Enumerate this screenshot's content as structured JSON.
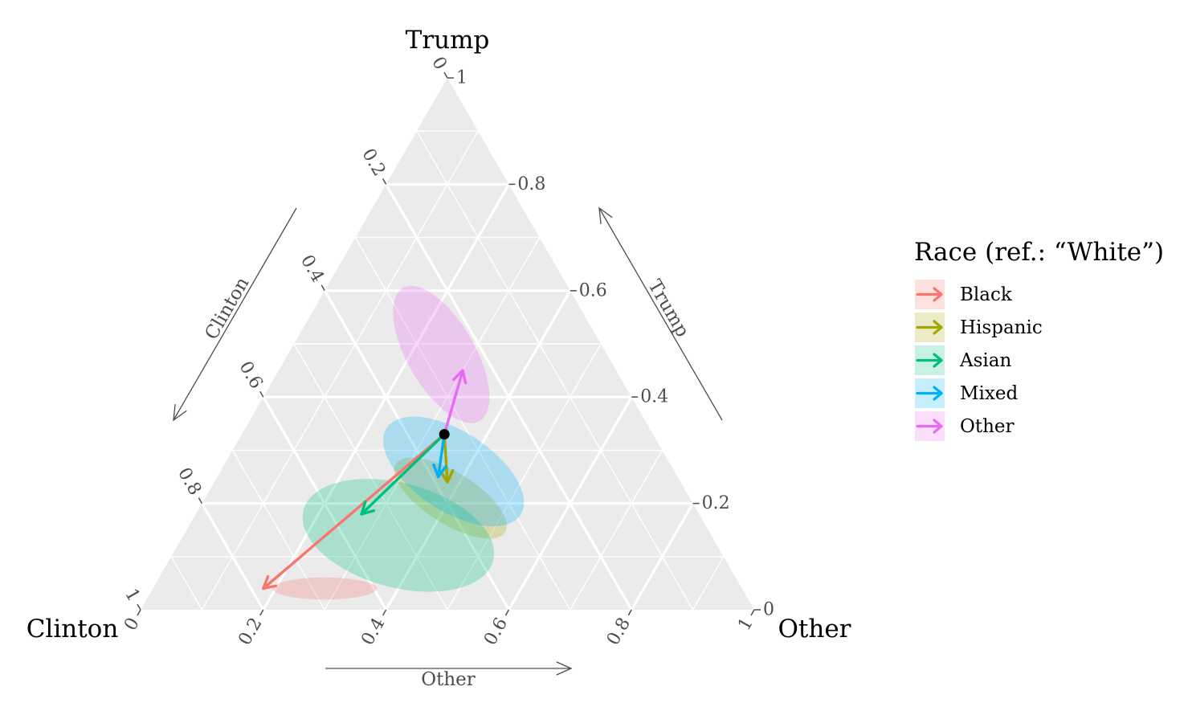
{
  "chart_data": {
    "type": "ternary",
    "vertices": {
      "top": "Trump",
      "left": "Clinton",
      "right": "Other"
    },
    "axis_titles": {
      "left": "Clinton",
      "right": "Trump",
      "bottom": "Other"
    },
    "ticks": [
      0,
      0.2,
      0.4,
      0.6,
      0.8,
      1
    ],
    "tick_labels": [
      "0",
      "0.2",
      "0.4",
      "0.6",
      "0.8",
      "1"
    ],
    "reference_point": {
      "trump": 0.33,
      "other": 0.33,
      "clinton": 0.34
    },
    "legend": {
      "title": "Race (ref.: “White”)",
      "placement": "right"
    },
    "series": [
      {
        "name": "Black",
        "color": "#F8766D",
        "arrow_end": {
          "trump": 0.04,
          "other": 0.18,
          "clinton": 0.78
        },
        "ellipse": {
          "center": {
            "trump": 0.04,
            "other": 0.28
          },
          "a": 0.085,
          "b": 0.018,
          "angle": 0
        }
      },
      {
        "name": "Hispanic",
        "color": "#A3A500",
        "arrow_end": {
          "trump": 0.24,
          "other": 0.38,
          "clinton": 0.38
        },
        "ellipse": {
          "center": {
            "trump": 0.21,
            "other": 0.4
          },
          "a": 0.105,
          "b": 0.042,
          "angle": 32
        }
      },
      {
        "name": "Asian",
        "color": "#00BF7D",
        "arrow_end": {
          "trump": 0.18,
          "other": 0.27,
          "clinton": 0.55
        },
        "ellipse": {
          "center": {
            "trump": 0.14,
            "other": 0.35
          },
          "a": 0.16,
          "b": 0.085,
          "angle": 15
        }
      },
      {
        "name": "Mixed",
        "color": "#00B0F6",
        "arrow_end": {
          "trump": 0.25,
          "other": 0.36,
          "clinton": 0.39
        },
        "ellipse": {
          "center": {
            "trump": 0.26,
            "other": 0.38
          },
          "a": 0.13,
          "b": 0.065,
          "angle": 33
        }
      },
      {
        "name": "Other",
        "color": "#E76BF3",
        "arrow_end": {
          "trump": 0.45,
          "other": 0.3,
          "clinton": 0.25
        },
        "ellipse": {
          "center": {
            "trump": 0.48,
            "other": 0.25
          },
          "a": 0.125,
          "b": 0.055,
          "angle": 60
        }
      }
    ]
  }
}
